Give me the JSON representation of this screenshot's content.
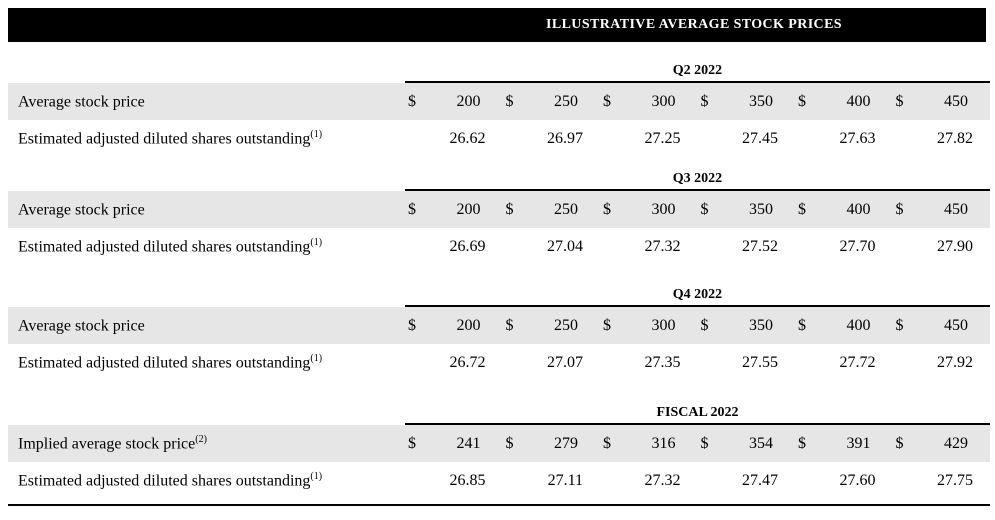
{
  "title": "ILLUSTRATIVE AVERAGE STOCK PRICES",
  "currency_symbol": "$",
  "sections": [
    {
      "period": "Q2 2022",
      "price": {
        "label": "Average stock price",
        "sup": "",
        "values": [
          "200",
          "250",
          "300",
          "350",
          "400",
          "450"
        ]
      },
      "shares": {
        "label": "Estimated adjusted diluted shares outstanding",
        "sup": "(1)",
        "values": [
          "26.62",
          "26.97",
          "27.25",
          "27.45",
          "27.63",
          "27.82"
        ]
      }
    },
    {
      "period": "Q3 2022",
      "price": {
        "label": "Average stock price",
        "sup": "",
        "values": [
          "200",
          "250",
          "300",
          "350",
          "400",
          "450"
        ]
      },
      "shares": {
        "label": "Estimated adjusted diluted shares outstanding",
        "sup": "(1)",
        "values": [
          "26.69",
          "27.04",
          "27.32",
          "27.52",
          "27.70",
          "27.90"
        ]
      }
    },
    {
      "period": "Q4 2022",
      "price": {
        "label": "Average stock price",
        "sup": "",
        "values": [
          "200",
          "250",
          "300",
          "350",
          "400",
          "450"
        ]
      },
      "shares": {
        "label": "Estimated adjusted diluted shares outstanding",
        "sup": "(1)",
        "values": [
          "26.72",
          "27.07",
          "27.35",
          "27.55",
          "27.72",
          "27.92"
        ]
      }
    },
    {
      "period": "FISCAL 2022",
      "price": {
        "label": "Implied average stock price",
        "sup": "(2)",
        "values": [
          "241",
          "279",
          "316",
          "354",
          "391",
          "429"
        ]
      },
      "shares": {
        "label": "Estimated adjusted diluted shares outstanding",
        "sup": "(1)",
        "values": [
          "26.85",
          "27.11",
          "27.32",
          "27.47",
          "27.60",
          "27.75"
        ]
      }
    }
  ]
}
